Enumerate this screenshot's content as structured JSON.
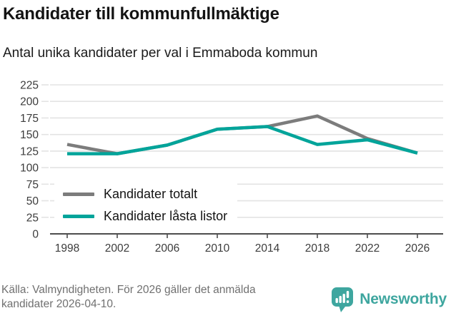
{
  "title": "Kandidater till kommunfullmäktige",
  "subtitle": "Antal unika kandidater per val i Emmaboda kommun",
  "legend": {
    "items": [
      {
        "label": "Kandidater totalt"
      },
      {
        "label": "Kandidater låsta listor"
      }
    ]
  },
  "footer": {
    "source_lines": [
      "Källa: Valmyndigheten. För 2026 gäller det anmälda",
      "kandidater 2026-04-10."
    ],
    "brand_name": "Newsworthy"
  },
  "colors": {
    "series_totalt": "#7c7c7c",
    "series_lasta": "#00a49a",
    "grid": "#e3e3e3",
    "axis": "#4d4d4d",
    "tick_label": "#3c3c3c",
    "footer_text": "#707070",
    "brand_teal": "#3ea69f"
  },
  "chart_data": {
    "type": "line",
    "title": "Kandidater till kommunfullmäktige",
    "subtitle": "Antal unika kandidater per val i Emmaboda kommun",
    "categories": [
      1998,
      2002,
      2006,
      2010,
      2014,
      2018,
      2022,
      2026
    ],
    "series": [
      {
        "name": "Kandidater totalt",
        "color_key": "series_totalt",
        "values": [
          135,
          121,
          134,
          158,
          162,
          178,
          144,
          122
        ]
      },
      {
        "name": "Kandidater låsta listor",
        "color_key": "series_lasta",
        "values": [
          121,
          121,
          134,
          158,
          162,
          135,
          142,
          122
        ]
      }
    ],
    "xlabel": "",
    "ylabel": "",
    "ylim": [
      0,
      225
    ],
    "y_ticks": [
      0,
      25,
      50,
      75,
      100,
      125,
      150,
      175,
      200,
      225
    ],
    "grid": "horizontal",
    "legend_position": "inside-bottom-left"
  }
}
